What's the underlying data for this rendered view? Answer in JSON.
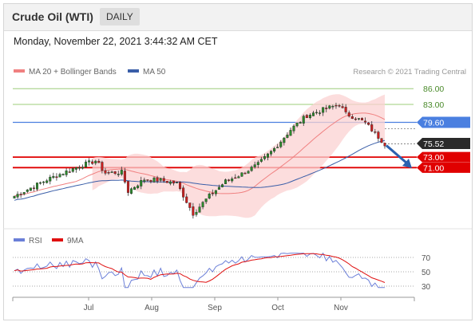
{
  "header": {
    "title": "Crude Oil (WTI)",
    "timeframe": "DAILY"
  },
  "timestamp": "Monday, November 22, 2021 3:44:32 AM CET",
  "legend": {
    "ma20": "MA 20 + Bollinger Bands",
    "ma50": "MA 50",
    "rsi": "RSI",
    "rsi_ma": "9MA"
  },
  "credit": "Research © 2021 Trading Central",
  "colors": {
    "up": "#2b8a2b",
    "down": "#cc1f1f",
    "bands": "#fbd2d2",
    "ma20": "#f08080",
    "ma50": "#3a5ea8",
    "blue_line": "#4a7fe0",
    "red_line": "#e00000",
    "green_line": "#9ccc7a",
    "current": "#2a2a2a",
    "arrow": "#2b62b0",
    "rsi": "#6b7fd8",
    "rsi_ma": "#e01010"
  },
  "chart_data": {
    "type": "candlestick",
    "x_labels": [
      "Jul",
      "Aug",
      "Sep",
      "Oct",
      "Nov"
    ],
    "ylim": [
      60,
      88
    ],
    "price_levels": [
      {
        "value": 86.0,
        "label": "86.00",
        "style": "resistance"
      },
      {
        "value": 83.0,
        "label": "83.00",
        "style": "resistance"
      },
      {
        "value": 79.6,
        "label": "79.60",
        "style": "pivot"
      },
      {
        "value": 75.52,
        "label": "75.52",
        "style": "current"
      },
      {
        "value": 73.0,
        "label": "73.00",
        "style": "support"
      },
      {
        "value": 71.0,
        "label": "71.00",
        "style": "support"
      }
    ],
    "rsi": {
      "levels": [
        70,
        50,
        30
      ],
      "level_labels": [
        "70",
        "50",
        "30"
      ],
      "ylim": [
        20,
        80
      ]
    }
  }
}
